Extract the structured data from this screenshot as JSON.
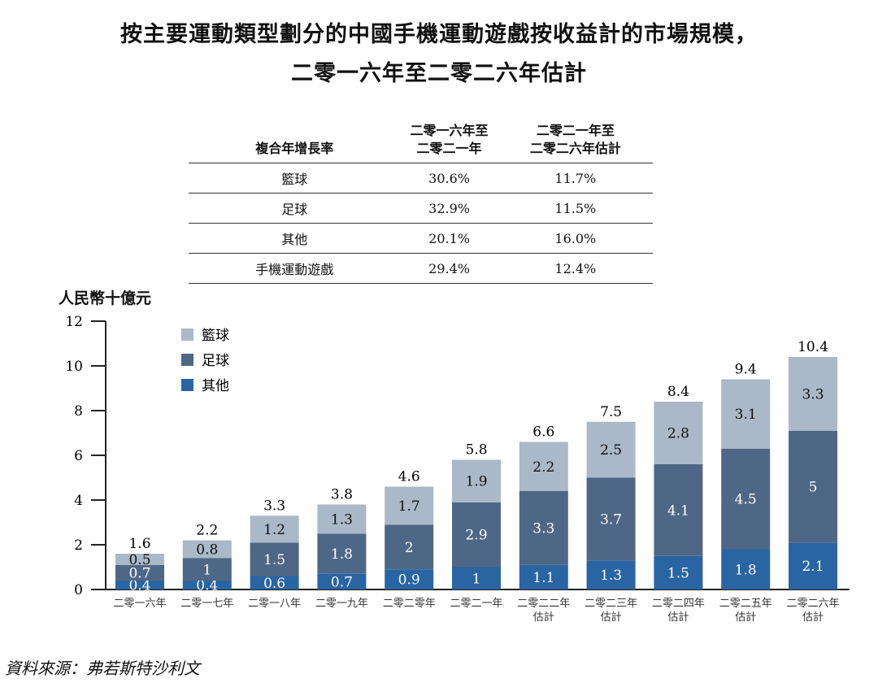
{
  "title_line1": "按主要運動類型劃分的中國手機運動遊戲按收益計的市場規模，",
  "title_line2": "二零一六年至二零二六年估計",
  "cagr_table": {
    "headers": [
      "複合年增長率",
      "二零一六年至\n二零二一年",
      "二零二一年至\n二零二六年估計"
    ],
    "rows": [
      [
        "籃球",
        "30.6%",
        "11.7%"
      ],
      [
        "足球",
        "32.9%",
        "11.5%"
      ],
      [
        "其他",
        "20.1%",
        "16.0%"
      ],
      [
        "手機運動遊戲",
        "29.4%",
        "12.4%"
      ]
    ]
  },
  "source": "資料來源：弗若斯特沙利文",
  "chart_data": {
    "type": "bar",
    "stacked": true,
    "ylabel": "人民幣十億元",
    "ylim": [
      0,
      12
    ],
    "yticks": [
      0,
      2,
      4,
      6,
      8,
      10,
      12
    ],
    "grid": false,
    "legend_position": "top-left",
    "categories": [
      "二零一六年",
      "二零一七年",
      "二零一八年",
      "二零一九年",
      "二零二零年",
      "二零二一年",
      "二零二二年\n估計",
      "二零二三年\n估計",
      "二零二四年\n估計",
      "二零二五年\n估計",
      "二零二六年\n估計"
    ],
    "series": [
      {
        "name": "其他",
        "color": "#2a65a3",
        "values": [
          0.4,
          0.4,
          0.6,
          0.7,
          0.9,
          1.0,
          1.1,
          1.3,
          1.5,
          1.8,
          2.1
        ]
      },
      {
        "name": "足球",
        "color": "#4f6786",
        "values": [
          0.7,
          1.0,
          1.5,
          1.8,
          2.0,
          2.9,
          3.3,
          3.7,
          4.1,
          4.5,
          5.0
        ]
      },
      {
        "name": "籃球",
        "color": "#aab8c7",
        "values": [
          0.5,
          0.8,
          1.2,
          1.3,
          1.7,
          1.9,
          2.2,
          2.5,
          2.8,
          3.1,
          3.3
        ]
      }
    ],
    "totals": [
      1.6,
      2.2,
      3.3,
      3.8,
      4.6,
      5.8,
      6.6,
      7.5,
      8.4,
      9.4,
      10.4
    ],
    "legend": [
      "籃球",
      "足球",
      "其他"
    ]
  }
}
